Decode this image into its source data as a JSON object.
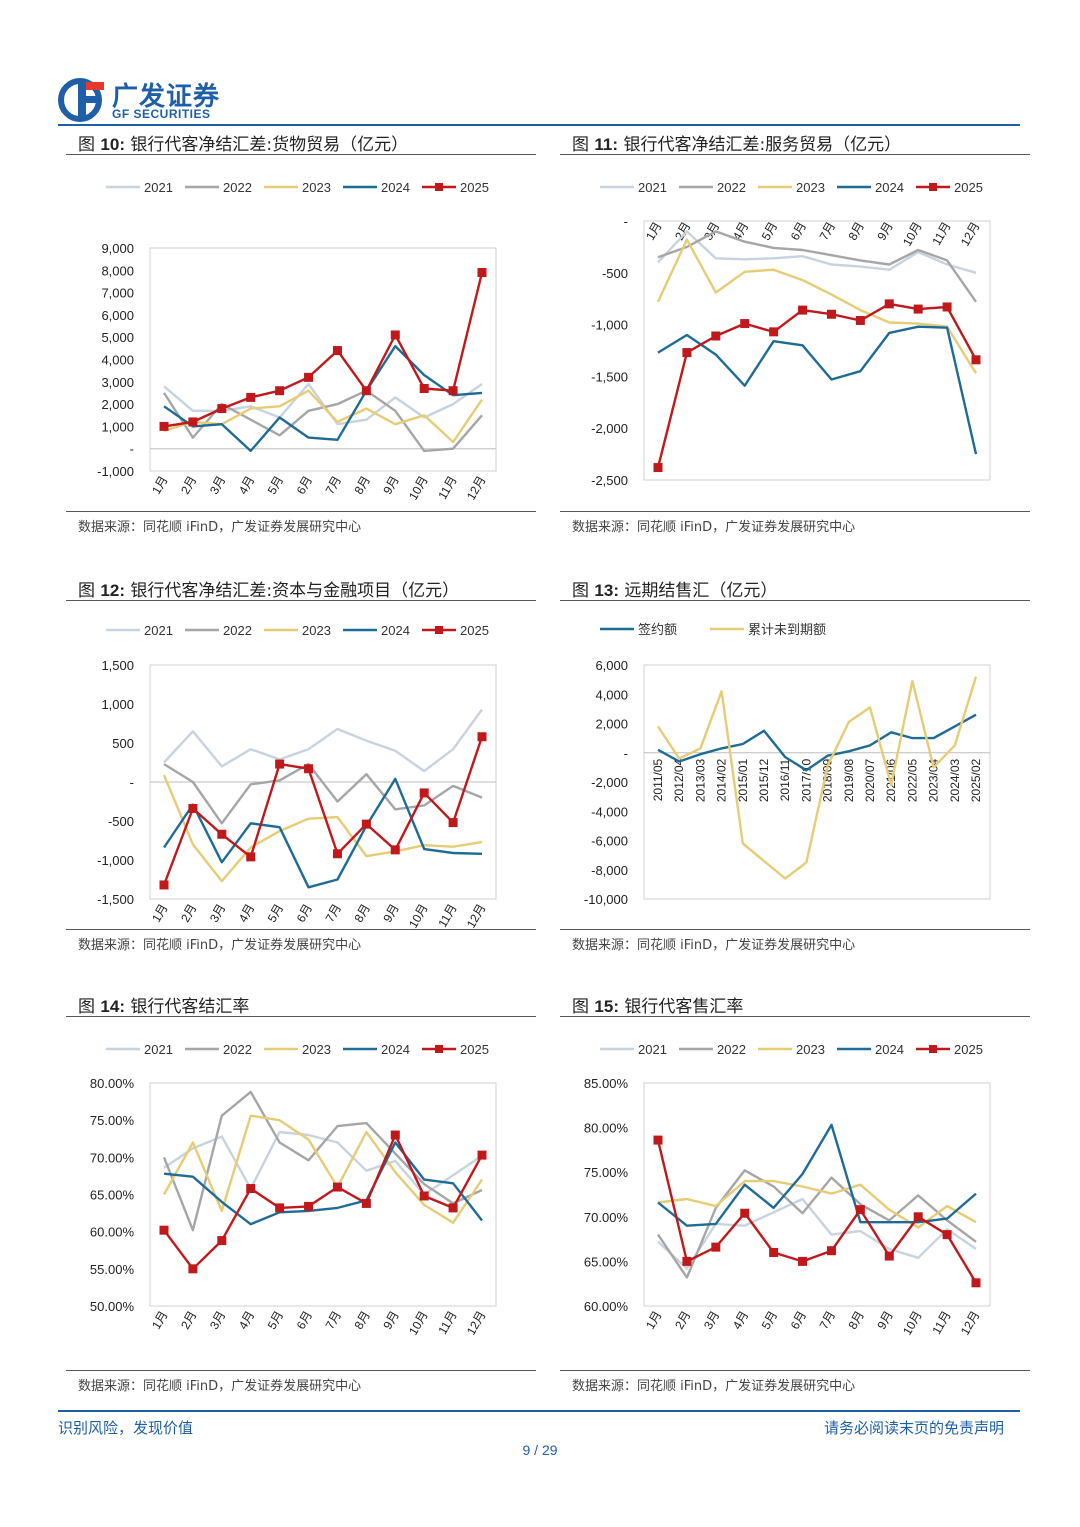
{
  "brand": {
    "name_cn": "广发证券",
    "name_en": "GF SECURITIES",
    "color": "#1f5fa8",
    "accent": "#e8382c"
  },
  "footer": {
    "left": "识别风险，发现价值",
    "right": "请务必阅读末页的免责声明",
    "page": "9 / 29"
  },
  "colors": {
    "2021": "#c7d3de",
    "2022": "#a6a6a6",
    "2023": "#e6cc74",
    "2024": "#1e6b96",
    "2025": "#c0191c",
    "sign": "#1e6b96",
    "cum": "#e6cc74"
  },
  "chart_data": [
    {
      "type": "line",
      "fig_label": "图",
      "fig_num": "10:",
      "title": "银行代客净结汇差:货物贸易（亿元）",
      "source": "数据来源：同花顺 iFinD，广发证券发展研究中心",
      "categories": [
        "1月",
        "2月",
        "3月",
        "4月",
        "5月",
        "6月",
        "7月",
        "8月",
        "9月",
        "10月",
        "11月",
        "12月"
      ],
      "yticks": [
        "-1,000",
        "-",
        "1,000",
        "2,000",
        "3,000",
        "4,000",
        "5,000",
        "6,000",
        "7,000",
        "8,000",
        "9,000"
      ],
      "ylim": [
        -1000,
        9000
      ],
      "series": [
        {
          "name": "2021",
          "values": [
            2800,
            1700,
            1700,
            1900,
            1400,
            2900,
            1100,
            1300,
            2300,
            1400,
            2000,
            2900
          ]
        },
        {
          "name": "2022",
          "values": [
            2500,
            500,
            2000,
            1300,
            600,
            1700,
            2000,
            2600,
            1700,
            -100,
            0,
            1500
          ]
        },
        {
          "name": "2023",
          "values": [
            800,
            1200,
            1100,
            1800,
            1900,
            2600,
            1200,
            1800,
            1100,
            1500,
            300,
            2200
          ]
        },
        {
          "name": "2024",
          "values": [
            1900,
            1000,
            1100,
            -100,
            1400,
            500,
            400,
            2600,
            4600,
            3300,
            2400,
            2500
          ]
        },
        {
          "name": "2025",
          "values": [
            1000,
            1200,
            1800,
            2300,
            2600,
            3200,
            4400,
            2600,
            5100,
            2700,
            2600,
            7900
          ]
        }
      ]
    },
    {
      "type": "line",
      "fig_label": "图",
      "fig_num": "11:",
      "title": "银行代客净结汇差:服务贸易（亿元）",
      "source": "数据来源：同花顺 iFinD，广发证券发展研究中心",
      "categories": [
        "1月",
        "2月",
        "3月",
        "4月",
        "5月",
        "6月",
        "7月",
        "8月",
        "9月",
        "10月",
        "11月",
        "12月"
      ],
      "yticks": [
        "-2,500",
        "-2,000",
        "-1,500",
        "-1,000",
        "-500",
        "-"
      ],
      "ylim": [
        -2500,
        0
      ],
      "xaxis_top": true,
      "series": [
        {
          "name": "2021",
          "values": [
            -400,
            -100,
            -360,
            -370,
            -360,
            -340,
            -420,
            -440,
            -470,
            -300,
            -420,
            -500
          ]
        },
        {
          "name": "2022",
          "values": [
            -350,
            -250,
            -100,
            -200,
            -260,
            -280,
            -330,
            -380,
            -420,
            -280,
            -380,
            -780
          ]
        },
        {
          "name": "2023",
          "values": [
            -780,
            -180,
            -690,
            -490,
            -470,
            -570,
            -710,
            -860,
            -980,
            -990,
            -1020,
            -1470
          ]
        },
        {
          "name": "2024",
          "values": [
            -1270,
            -1100,
            -1290,
            -1590,
            -1160,
            -1200,
            -1530,
            -1450,
            -1080,
            -1020,
            -1030,
            -2250
          ]
        },
        {
          "name": "2025",
          "values": [
            -2380,
            -1270,
            -1110,
            -990,
            -1070,
            -860,
            -900,
            -960,
            -800,
            -850,
            -830,
            -1340
          ]
        }
      ]
    },
    {
      "type": "line",
      "fig_label": "图",
      "fig_num": "12:",
      "title": "银行代客净结汇差:资本与金融项目（亿元）",
      "source": "数据来源：同花顺 iFinD，广发证券发展研究中心",
      "categories": [
        "1月",
        "2月",
        "3月",
        "4月",
        "5月",
        "6月",
        "7月",
        "8月",
        "9月",
        "10月",
        "11月",
        "12月"
      ],
      "yticks": [
        "-1,500",
        "-1,000",
        "-500",
        "-",
        "500",
        "1,000",
        "1,500"
      ],
      "ylim": [
        -1500,
        1500
      ],
      "series": [
        {
          "name": "2021",
          "values": [
            250,
            650,
            200,
            420,
            290,
            420,
            680,
            530,
            400,
            140,
            420,
            930
          ]
        },
        {
          "name": "2022",
          "values": [
            230,
            0,
            -530,
            -30,
            20,
            230,
            -250,
            100,
            -350,
            -300,
            -50,
            -200
          ]
        },
        {
          "name": "2023",
          "values": [
            90,
            -800,
            -1270,
            -840,
            -630,
            -470,
            -450,
            -950,
            -890,
            -810,
            -830,
            -770
          ]
        },
        {
          "name": "2024",
          "values": [
            -840,
            -290,
            -1030,
            -530,
            -580,
            -1350,
            -1250,
            -560,
            40,
            -860,
            -910,
            -920
          ]
        },
        {
          "name": "2025",
          "values": [
            -1320,
            -340,
            -670,
            -960,
            230,
            170,
            -920,
            -540,
            -870,
            -140,
            -520,
            580
          ]
        }
      ]
    },
    {
      "type": "line",
      "fig_label": "图",
      "fig_num": "13:",
      "title": "远期结售汇（亿元）",
      "source": "数据来源：同花顺 iFinD，广发证券发展研究中心",
      "categories": [
        "2011/05",
        "2012/04",
        "2013/03",
        "2014/02",
        "2015/01",
        "2015/12",
        "2016/11",
        "2017/10",
        "2018/09",
        "2019/08",
        "2020/07",
        "2021/06",
        "2022/05",
        "2023/04",
        "2024/03",
        "2025/02"
      ],
      "yticks": [
        "-10,000",
        "-8,000",
        "-6,000",
        "-4,000",
        "-2,000",
        "-",
        "2,000",
        "4,000",
        "6,000"
      ],
      "ylim": [
        -10000,
        6000
      ],
      "series": [
        {
          "name": "签约额",
          "values": [
            200,
            -600,
            -100,
            300,
            600,
            1500,
            -300,
            -1200,
            -200,
            100,
            500,
            1400,
            1000,
            1000,
            1800,
            2600
          ]
        },
        {
          "name": "累计未到期额",
          "values": [
            1800,
            -400,
            300,
            4200,
            -6200,
            -7400,
            -8600,
            -7500,
            -900,
            2100,
            3100,
            -2200,
            4900,
            -1000,
            500,
            5200
          ]
        }
      ]
    },
    {
      "type": "line",
      "fig_label": "图",
      "fig_num": "14:",
      "title": "银行代客结汇率",
      "source": "数据来源：同花顺 iFinD，广发证券发展研究中心",
      "categories": [
        "1月",
        "2月",
        "3月",
        "4月",
        "5月",
        "6月",
        "7月",
        "8月",
        "9月",
        "10月",
        "11月",
        "12月"
      ],
      "yticks": [
        "50.00%",
        "55.00%",
        "60.00%",
        "65.00%",
        "70.00%",
        "75.00%",
        "80.00%"
      ],
      "ylim": [
        50,
        80
      ],
      "series": [
        {
          "name": "2021",
          "values": [
            68.6,
            71.2,
            72.8,
            65.8,
            73.4,
            73.0,
            72.0,
            68.2,
            69.5,
            65.0,
            67.6,
            70.2
          ]
        },
        {
          "name": "2022",
          "values": [
            70.0,
            60.2,
            75.6,
            78.8,
            72.0,
            69.6,
            74.2,
            74.6,
            70.5,
            66.4,
            63.8,
            65.6
          ]
        },
        {
          "name": "2023",
          "values": [
            65.0,
            72.0,
            62.8,
            75.6,
            75.0,
            72.4,
            66.0,
            73.4,
            68.0,
            63.6,
            61.2,
            67.0
          ]
        },
        {
          "name": "2024",
          "values": [
            67.8,
            67.4,
            64.0,
            61.0,
            62.6,
            62.8,
            63.2,
            64.2,
            72.0,
            67.0,
            66.5,
            61.5
          ]
        },
        {
          "name": "2025",
          "values": [
            60.2,
            55.0,
            58.8,
            65.8,
            63.2,
            63.4,
            66.0,
            63.8,
            73.0,
            64.8,
            63.2,
            70.3
          ]
        }
      ]
    },
    {
      "type": "line",
      "fig_label": "图",
      "fig_num": "15:",
      "title": "银行代客售汇率",
      "source": "数据来源：同花顺 iFinD，广发证券发展研究中心",
      "categories": [
        "1月",
        "2月",
        "3月",
        "4月",
        "5月",
        "6月",
        "7月",
        "8月",
        "9月",
        "10月",
        "11月",
        "12月"
      ],
      "yticks": [
        "60.00%",
        "65.00%",
        "70.00%",
        "75.00%",
        "80.00%",
        "85.00%"
      ],
      "ylim": [
        60,
        85
      ],
      "series": [
        {
          "name": "2021",
          "values": [
            67.2,
            64.2,
            69.2,
            69.0,
            70.5,
            72.0,
            68.0,
            68.4,
            66.4,
            65.4,
            68.6,
            66.4
          ]
        },
        {
          "name": "2022",
          "values": [
            68.0,
            63.2,
            71.0,
            75.2,
            73.4,
            70.4,
            74.4,
            71.4,
            69.6,
            72.4,
            69.6,
            67.2
          ]
        },
        {
          "name": "2023",
          "values": [
            71.6,
            72.0,
            71.2,
            74.0,
            74.0,
            73.4,
            72.6,
            73.6,
            70.8,
            68.8,
            71.2,
            69.4
          ]
        },
        {
          "name": "2024",
          "values": [
            71.6,
            69.0,
            69.2,
            73.6,
            71.0,
            74.8,
            80.3,
            69.4,
            69.4,
            69.4,
            69.8,
            72.6
          ]
        },
        {
          "name": "2025",
          "values": [
            78.6,
            65.0,
            66.6,
            70.4,
            66.0,
            65.0,
            66.2,
            70.8,
            65.6,
            70.0,
            68.0,
            62.6
          ]
        }
      ]
    }
  ]
}
